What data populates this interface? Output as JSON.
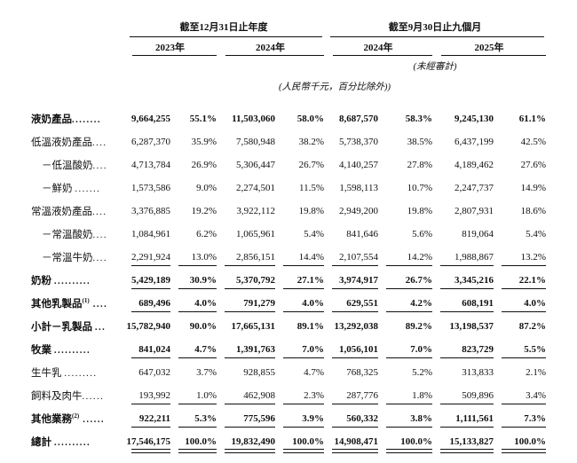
{
  "table": {
    "groups": [
      {
        "label": "截至12月31日止年度",
        "years": [
          "2023年",
          "2024年"
        ]
      },
      {
        "label": "截至9月30日止九個月",
        "years": [
          "2024年",
          "2025年"
        ]
      }
    ],
    "unaudited_note": "(未經審計)",
    "units_note": "(人民幣千元，百分比除外))",
    "rows": [
      {
        "label": "液奶產品",
        "sup": "",
        "dots": "........",
        "indent": false,
        "bold": true,
        "line": "none",
        "values": [
          "9,664,255",
          "55.1%",
          "11,503,060",
          "58.0%",
          "8,687,570",
          "58.3%",
          "9,245,130",
          "61.1%"
        ]
      },
      {
        "label": "低溫液奶產品",
        "sup": "",
        "dots": "....",
        "indent": false,
        "bold": false,
        "line": "none",
        "values": [
          "6,287,370",
          "35.9%",
          "7,580,948",
          "38.2%",
          "5,738,370",
          "38.5%",
          "6,437,199",
          "42.5%"
        ]
      },
      {
        "label": "－低溫酸奶",
        "sup": "",
        "dots": "....",
        "indent": true,
        "bold": false,
        "line": "none",
        "values": [
          "4,713,784",
          "26.9%",
          "5,306,447",
          "26.7%",
          "4,140,257",
          "27.8%",
          "4,189,462",
          "27.6%"
        ]
      },
      {
        "label": "－鮮奶 ",
        "sup": "",
        "dots": ".......",
        "indent": true,
        "bold": false,
        "line": "none",
        "values": [
          "1,573,586",
          "9.0%",
          "2,274,501",
          "11.5%",
          "1,598,113",
          "10.7%",
          "2,247,737",
          "14.9%"
        ]
      },
      {
        "label": "常溫液奶產品",
        "sup": "",
        "dots": "....",
        "indent": false,
        "bold": false,
        "line": "none",
        "values": [
          "3,376,885",
          "19.2%",
          "3,922,112",
          "19.8%",
          "2,949,200",
          "19.8%",
          "2,807,931",
          "18.6%"
        ]
      },
      {
        "label": "－常溫酸奶",
        "sup": "",
        "dots": "....",
        "indent": true,
        "bold": false,
        "line": "none",
        "values": [
          "1,084,961",
          "6.2%",
          "1,065,961",
          "5.4%",
          "841,646",
          "5.6%",
          "819,064",
          "5.4%"
        ]
      },
      {
        "label": "－常溫牛奶",
        "sup": "",
        "dots": "....",
        "indent": true,
        "bold": false,
        "line": "single",
        "values": [
          "2,291,924",
          "13.0%",
          "2,856,151",
          "14.4%",
          "2,107,554",
          "14.2%",
          "1,988,867",
          "13.2%"
        ]
      },
      {
        "label": "奶粉 ",
        "sup": "",
        "dots": "..........",
        "indent": false,
        "bold": true,
        "line": "single",
        "values": [
          "5,429,189",
          "30.9%",
          "5,370,792",
          "27.1%",
          "3,974,917",
          "26.7%",
          "3,345,216",
          "22.1%"
        ]
      },
      {
        "label": "其他乳製品",
        "sup": "(1)",
        "dots": " ....",
        "indent": false,
        "bold": true,
        "line": "single",
        "values": [
          "689,496",
          "4.0%",
          "791,279",
          "4.0%",
          "629,551",
          "4.2%",
          "608,191",
          "4.0%"
        ]
      },
      {
        "label": "小計－乳製品 ",
        "sup": "",
        "dots": "...",
        "indent": false,
        "bold": true,
        "line": "none",
        "values": [
          "15,782,940",
          "90.0%",
          "17,665,131",
          "89.1%",
          "13,292,038",
          "89.2%",
          "13,198,537",
          "87.2%"
        ]
      },
      {
        "label": "牧業 ",
        "sup": "",
        "dots": "..........",
        "indent": false,
        "bold": true,
        "line": "single",
        "values": [
          "841,024",
          "4.7%",
          "1,391,763",
          "7.0%",
          "1,056,101",
          "7.0%",
          "823,729",
          "5.5%"
        ]
      },
      {
        "label": "生牛乳 ",
        "sup": "",
        "dots": ".........",
        "indent": false,
        "bold": false,
        "line": "none",
        "values": [
          "647,032",
          "3.7%",
          "928,855",
          "4.7%",
          "768,325",
          "5.2%",
          "313,833",
          "2.1%"
        ]
      },
      {
        "label": "飼料及肉牛",
        "sup": "",
        "dots": "......",
        "indent": false,
        "bold": false,
        "line": "single",
        "values": [
          "193,992",
          "1.0%",
          "462,908",
          "2.3%",
          "287,776",
          "1.8%",
          "509,896",
          "3.4%"
        ]
      },
      {
        "label": "其他業務",
        "sup": "(2)",
        "dots": " ......",
        "indent": false,
        "bold": true,
        "line": "single",
        "values": [
          "922,211",
          "5.3%",
          "775,596",
          "3.9%",
          "560,332",
          "3.8%",
          "1,111,561",
          "7.3%"
        ]
      },
      {
        "label": "總計 ",
        "sup": "",
        "dots": "..........",
        "indent": false,
        "bold": true,
        "line": "double",
        "values": [
          "17,546,175",
          "100.0%",
          "19,832,490",
          "100.0%",
          "14,908,471",
          "100.0%",
          "15,133,827",
          "100.0%"
        ]
      }
    ]
  }
}
